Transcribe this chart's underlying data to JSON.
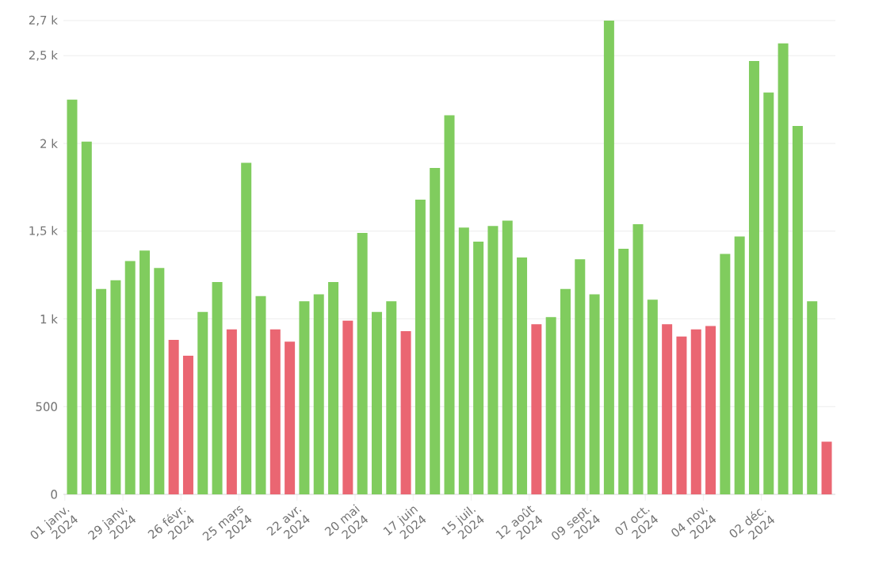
{
  "chart_data": {
    "type": "bar",
    "categories": [
      "01 janv. 2024",
      null,
      null,
      null,
      "29 janv. 2024",
      null,
      null,
      null,
      "26 févr. 2024",
      null,
      null,
      null,
      "25 mars 2024",
      null,
      null,
      null,
      "22 avr. 2024",
      null,
      null,
      null,
      "20 mai 2024",
      null,
      null,
      null,
      "17 juin 2024",
      null,
      null,
      null,
      "15 juil. 2024",
      null,
      null,
      null,
      "12 août 2024",
      null,
      null,
      null,
      "09 sept. 2024",
      null,
      null,
      null,
      "07 oct. 2024",
      null,
      null,
      null,
      "04 nov. 2024",
      null,
      null,
      null,
      "02 déc. 2024",
      null,
      null,
      null,
      null
    ],
    "values": [
      2250,
      2010,
      1170,
      1220,
      1330,
      1390,
      1290,
      880,
      790,
      1040,
      1210,
      940,
      1890,
      1130,
      940,
      870,
      1100,
      1140,
      1210,
      990,
      1490,
      1040,
      1100,
      930,
      1680,
      1860,
      2160,
      1520,
      1440,
      1530,
      1560,
      1350,
      970,
      1010,
      1170,
      1340,
      1140,
      2700,
      1400,
      1540,
      1110,
      970,
      900,
      940,
      960,
      1370,
      1470,
      2470,
      2290,
      2570,
      2100,
      1100,
      300
    ],
    "colors": [
      "#80cc5e",
      "#80cc5e",
      "#80cc5e",
      "#80cc5e",
      "#80cc5e",
      "#80cc5e",
      "#80cc5e",
      "#ea6672",
      "#ea6672",
      "#80cc5e",
      "#80cc5e",
      "#ea6672",
      "#80cc5e",
      "#80cc5e",
      "#ea6672",
      "#ea6672",
      "#80cc5e",
      "#80cc5e",
      "#80cc5e",
      "#ea6672",
      "#80cc5e",
      "#80cc5e",
      "#80cc5e",
      "#ea6672",
      "#80cc5e",
      "#80cc5e",
      "#80cc5e",
      "#80cc5e",
      "#80cc5e",
      "#80cc5e",
      "#80cc5e",
      "#80cc5e",
      "#ea6672",
      "#80cc5e",
      "#80cc5e",
      "#80cc5e",
      "#80cc5e",
      "#80cc5e",
      "#80cc5e",
      "#80cc5e",
      "#80cc5e",
      "#ea6672",
      "#ea6672",
      "#ea6672",
      "#ea6672",
      "#80cc5e",
      "#80cc5e",
      "#80cc5e",
      "#80cc5e",
      "#80cc5e",
      "#80cc5e",
      "#80cc5e",
      "#ea6672"
    ],
    "ylim": [
      0,
      2700
    ],
    "yticks": [
      0,
      500,
      {
        "value": 1000,
        "label": "1 k"
      },
      {
        "value": 1500,
        "label": "1,5 k"
      },
      {
        "value": 2000,
        "label": "2 k"
      },
      {
        "value": 2500,
        "label": "2,5 k"
      },
      {
        "value": 2700,
        "label": "2,7 k"
      }
    ],
    "grid": "y"
  }
}
